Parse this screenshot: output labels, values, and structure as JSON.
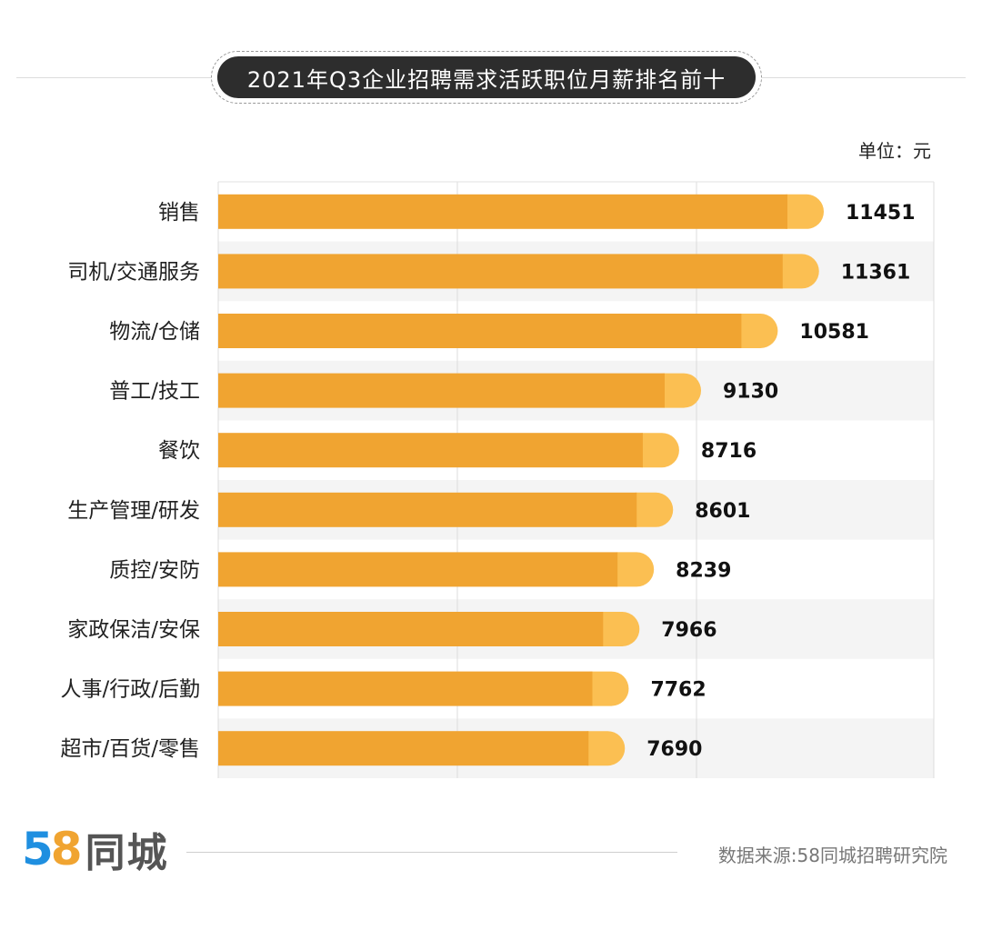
{
  "title": "2021年Q3企业招聘需求活跃职位月薪排名前十",
  "unit_label": "单位：元",
  "chart_data": {
    "type": "bar",
    "orientation": "horizontal",
    "title": "2021年Q3企业招聘需求活跃职位月薪排名前十",
    "unit": "元",
    "categories": [
      "销售",
      "司机/交通服务",
      "物流/仓储",
      "普工/技工",
      "餐饮",
      "生产管理/研发",
      "质控/安防",
      "家政保洁/安保",
      "人事/行政/后勤",
      "超市/百货/零售"
    ],
    "values": [
      11451,
      11361,
      10581,
      9130,
      8716,
      8601,
      8239,
      7966,
      7762,
      7690
    ],
    "grid": true,
    "colors": {
      "bar": "#f0a431",
      "bar_cap": "#fbbf52"
    }
  },
  "footer": {
    "logo_digits_1": "5",
    "logo_digits_2": "8",
    "logo_text": "同城",
    "source": "数据来源:58同城招聘研究院"
  }
}
